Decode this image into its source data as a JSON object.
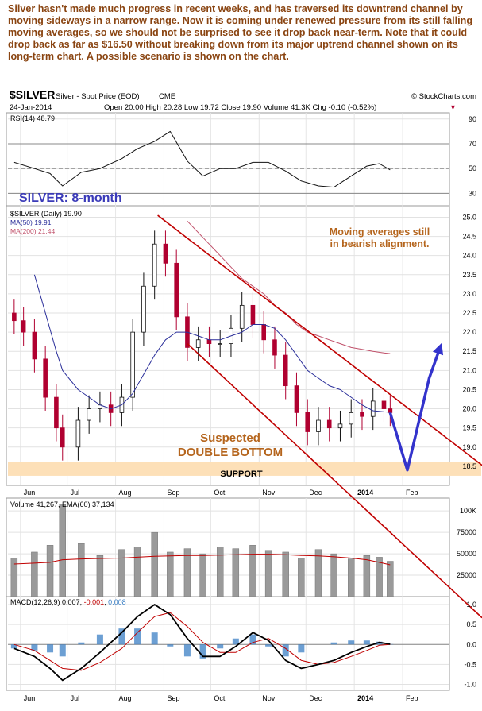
{
  "commentary": "Silver hasn't made much progress in recent weeks, and has traversed its downtrend channel by moving sideways in a narrow range. Now it is coming under renewed pressure from its still falling moving averages, so we should not be surprised to see it drop back near-term. Note that it could drop back as far as $16.50 without breaking down from its major uptrend channel shown on its long-term chart. A possible scenario is shown on the chart.",
  "header": {
    "symbol": "$SILVER",
    "description": "Silver - Spot Price (EOD)",
    "exchange": "CME",
    "watermark": "© StockCharts.com",
    "date": "24-Jan-2014",
    "quote": "Open 20.00  High 20.28  Low 19.72  Close 19.90  Volume 41.3K  Chg -0.10 (-0.52%)",
    "down_marker": "▼"
  },
  "colors": {
    "price_bar": "#111111",
    "down_bar": "#b00030",
    "ma50": "#2b2f9a",
    "ma200": "#c0506a",
    "channel": "#c00000",
    "scenario": "#3333cc",
    "support": "#fde0b8",
    "annotation_brown": "#b5651d",
    "annotation_red": "#c0290f",
    "title_blue": "#3a3ab8",
    "volume_bar": "#9a9a9a",
    "macd_hist": "#3b7fc4"
  },
  "chart_data": [
    {
      "type": "line",
      "panel": "rsi",
      "legend": "RSI(14) 48.79",
      "ylim": [
        20,
        95
      ],
      "y_ticks": [
        30,
        50,
        70,
        90
      ],
      "reference_lines": [
        30,
        50,
        70
      ],
      "x": [
        "2013-05-28",
        "2013-06-10",
        "2013-06-20",
        "2013-06-28",
        "2013-07-10",
        "2013-07-22",
        "2013-08-05",
        "2013-08-15",
        "2013-08-26",
        "2013-09-05",
        "2013-09-16",
        "2013-09-26",
        "2013-10-07",
        "2013-10-17",
        "2013-10-28",
        "2013-11-07",
        "2013-11-18",
        "2013-11-28",
        "2013-12-09",
        "2013-12-19",
        "2013-12-30",
        "2014-01-09",
        "2014-01-17",
        "2014-01-24"
      ],
      "values": [
        55,
        50,
        46,
        36,
        47,
        50,
        58,
        66,
        72,
        80,
        56,
        44,
        50,
        50,
        55,
        55,
        48,
        40,
        36,
        35,
        44,
        52,
        54,
        49
      ]
    },
    {
      "type": "candlestick",
      "panel": "price",
      "title": "SILVER: 8-month",
      "legend": [
        "$SILVER (Daily) 19.90",
        "MA(50) 19.91",
        "MA(200) 21.44"
      ],
      "ylim": [
        18.0,
        25.3
      ],
      "y_ticks": [
        18.5,
        19.0,
        19.5,
        20.0,
        20.5,
        21.0,
        21.5,
        22.0,
        22.5,
        23.0,
        23.5,
        24.0,
        24.5,
        25.0
      ],
      "x_ticks": [
        "Jun",
        "Jul",
        "Aug",
        "Sep",
        "Oct",
        "Nov",
        "Dec",
        "2014",
        "Feb"
      ],
      "x": [
        "2013-05-28",
        "2013-06-03",
        "2013-06-10",
        "2013-06-17",
        "2013-06-24",
        "2013-06-28",
        "2013-07-08",
        "2013-07-15",
        "2013-07-22",
        "2013-07-29",
        "2013-08-05",
        "2013-08-12",
        "2013-08-19",
        "2013-08-26",
        "2013-09-02",
        "2013-09-09",
        "2013-09-16",
        "2013-09-23",
        "2013-09-30",
        "2013-10-07",
        "2013-10-14",
        "2013-10-21",
        "2013-10-28",
        "2013-11-04",
        "2013-11-11",
        "2013-11-18",
        "2013-11-25",
        "2013-12-02",
        "2013-12-09",
        "2013-12-16",
        "2013-12-23",
        "2013-12-30",
        "2014-01-06",
        "2014-01-13",
        "2014-01-20",
        "2014-01-24"
      ],
      "close": [
        22.3,
        22.0,
        21.3,
        20.3,
        19.5,
        19.0,
        19.7,
        20.0,
        20.1,
        19.9,
        20.3,
        22.0,
        23.2,
        24.3,
        23.8,
        22.4,
        21.6,
        21.8,
        21.7,
        21.7,
        22.1,
        22.7,
        22.2,
        21.8,
        21.4,
        20.6,
        19.9,
        19.4,
        19.7,
        19.5,
        19.6,
        19.9,
        19.8,
        20.2,
        20.0,
        19.9
      ],
      "ma50": [
        null,
        null,
        23.5,
        22.5,
        21.5,
        21.0,
        20.5,
        20.3,
        20.1,
        20.0,
        20.1,
        20.4,
        20.9,
        21.4,
        21.8,
        22.0,
        22.0,
        21.9,
        21.8,
        21.8,
        21.9,
        22.0,
        22.2,
        22.2,
        22.1,
        21.8,
        21.4,
        21.0,
        20.8,
        20.6,
        20.5,
        20.3,
        20.1,
        19.95,
        19.92,
        19.91
      ],
      "ma200": [
        null,
        null,
        null,
        null,
        null,
        null,
        null,
        null,
        null,
        null,
        null,
        null,
        null,
        null,
        null,
        null,
        24.9,
        24.6,
        24.3,
        24.0,
        23.7,
        23.4,
        23.2,
        23.0,
        22.7,
        22.5,
        22.2,
        22.0,
        21.9,
        21.8,
        21.7,
        21.6,
        21.55,
        21.5,
        21.46,
        21.44
      ],
      "channel_upper": [
        [
          "2013-08-28",
          25.05
        ],
        [
          "2014-02-24",
          19.4
        ]
      ],
      "channel_lower": [
        [
          "2013-09-16",
          21.7
        ],
        [
          "2014-02-24",
          15.6
        ]
      ],
      "support_zone": [
        18.25,
        18.62
      ],
      "scenario_path": [
        [
          "2014-01-24",
          19.9
        ],
        [
          "2014-02-04",
          18.4
        ],
        [
          "2014-02-11",
          19.6
        ],
        [
          "2014-02-18",
          20.8
        ],
        [
          "2014-02-25",
          21.6
        ]
      ],
      "annotations": [
        "Moving averages still in bearish alignment.",
        "Suspected DOUBLE BOTTOM",
        "SUPPORT"
      ]
    },
    {
      "type": "bar",
      "panel": "volume",
      "legend": "Volume 41,267, EMA(60) 37,134",
      "ylim": [
        0,
        115000
      ],
      "y_ticks": [
        25000,
        50000,
        75000,
        100000
      ],
      "y_tick_labels": [
        "25000",
        "50000",
        "75000",
        "100K"
      ],
      "x": [
        "2013-05-28",
        "2013-06-10",
        "2013-06-20",
        "2013-06-28",
        "2013-07-10",
        "2013-07-22",
        "2013-08-05",
        "2013-08-15",
        "2013-08-26",
        "2013-09-05",
        "2013-09-16",
        "2013-09-26",
        "2013-10-07",
        "2013-10-17",
        "2013-10-28",
        "2013-11-07",
        "2013-11-18",
        "2013-11-28",
        "2013-12-09",
        "2013-12-19",
        "2013-12-30",
        "2014-01-09",
        "2014-01-17",
        "2014-01-24"
      ],
      "values": [
        45000,
        52000,
        60000,
        108000,
        62000,
        48000,
        55000,
        58000,
        75000,
        52000,
        56000,
        50000,
        58000,
        56000,
        60000,
        54000,
        52000,
        45000,
        55000,
        50000,
        44000,
        48000,
        46000,
        41267
      ],
      "ema60": [
        38000,
        39000,
        40000,
        43000,
        44000,
        44500,
        45000,
        46000,
        47000,
        47500,
        48000,
        48000,
        48500,
        49000,
        49500,
        49500,
        49000,
        48000,
        47500,
        46500,
        45000,
        43000,
        40000,
        37134
      ]
    },
    {
      "type": "line",
      "panel": "macd",
      "legend": [
        "MACD(12,26,9)",
        "0.007",
        "-0.001",
        "0.008"
      ],
      "ylim": [
        -1.15,
        1.2
      ],
      "y_ticks": [
        -1.0,
        -0.5,
        0.0,
        0.5,
        1.0
      ],
      "x": [
        "2013-05-28",
        "2013-06-10",
        "2013-06-20",
        "2013-06-28",
        "2013-07-10",
        "2013-07-22",
        "2013-08-05",
        "2013-08-15",
        "2013-08-26",
        "2013-09-05",
        "2013-09-16",
        "2013-09-26",
        "2013-10-07",
        "2013-10-17",
        "2013-10-28",
        "2013-11-07",
        "2013-11-18",
        "2013-11-28",
        "2013-12-09",
        "2013-12-19",
        "2013-12-30",
        "2014-01-09",
        "2014-01-17",
        "2014-01-24"
      ],
      "series": [
        {
          "values": [
            -0.1,
            -0.3,
            -0.6,
            -0.9,
            -0.6,
            -0.2,
            0.3,
            0.7,
            1.0,
            0.75,
            0.15,
            -0.3,
            -0.3,
            -0.05,
            0.3,
            0.1,
            -0.4,
            -0.6,
            -0.5,
            -0.4,
            -0.2,
            -0.05,
            0.05,
            0.007
          ]
        },
        {
          "values": [
            0.0,
            -0.15,
            -0.4,
            -0.6,
            -0.65,
            -0.45,
            -0.1,
            0.3,
            0.7,
            0.8,
            0.45,
            0.05,
            -0.2,
            -0.2,
            0.05,
            0.15,
            -0.1,
            -0.4,
            -0.5,
            -0.45,
            -0.3,
            -0.15,
            -0.02,
            -0.001
          ]
        },
        {
          "values": [
            -0.1,
            -0.15,
            -0.2,
            -0.3,
            0.05,
            0.25,
            0.4,
            0.4,
            0.3,
            -0.05,
            -0.3,
            -0.35,
            -0.1,
            0.15,
            0.25,
            -0.05,
            -0.3,
            -0.2,
            0.0,
            0.05,
            0.1,
            0.1,
            0.07,
            0.008
          ]
        }
      ]
    }
  ]
}
